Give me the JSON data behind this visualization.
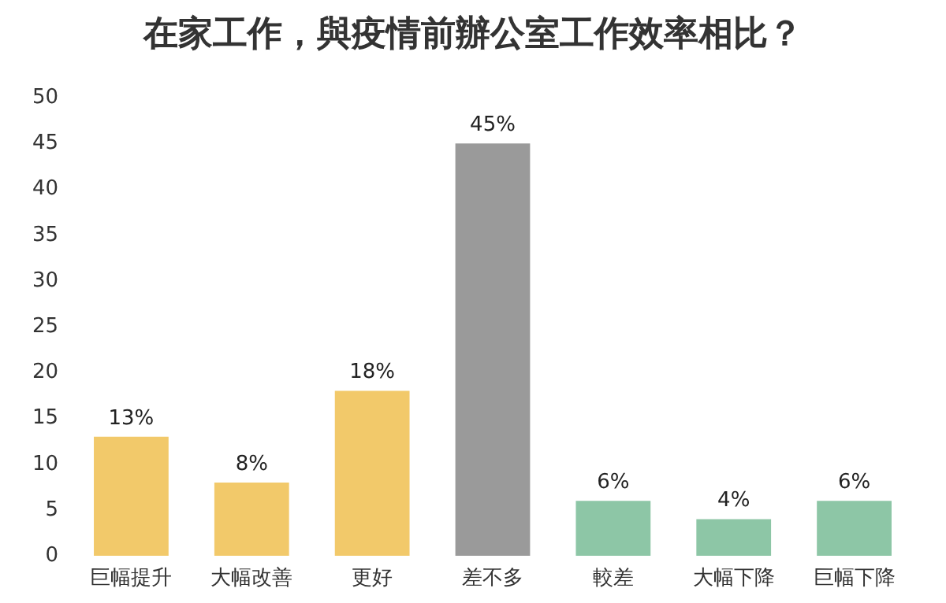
{
  "chart_data": {
    "type": "bar",
    "title": "在家工作，與疫情前辦公室工作效率相比？",
    "categories": [
      "巨幅提升",
      "大幅改善",
      "更好",
      "差不多",
      "較差",
      "大幅下降",
      "巨幅下降"
    ],
    "values": [
      13,
      8,
      18,
      45,
      6,
      4,
      6
    ],
    "colors": [
      "#f2c96a",
      "#f2c96a",
      "#f2c96a",
      "#9a9a9a",
      "#8dc6a6",
      "#8dc6a6",
      "#8dc6a6"
    ],
    "value_labels": [
      "13%",
      "8%",
      "18%",
      "45%",
      "6%",
      "4%",
      "6%"
    ],
    "ylim": [
      0,
      50
    ],
    "yticks": [
      0,
      5,
      10,
      15,
      20,
      25,
      30,
      35,
      40,
      45,
      50
    ],
    "grid": false
  }
}
